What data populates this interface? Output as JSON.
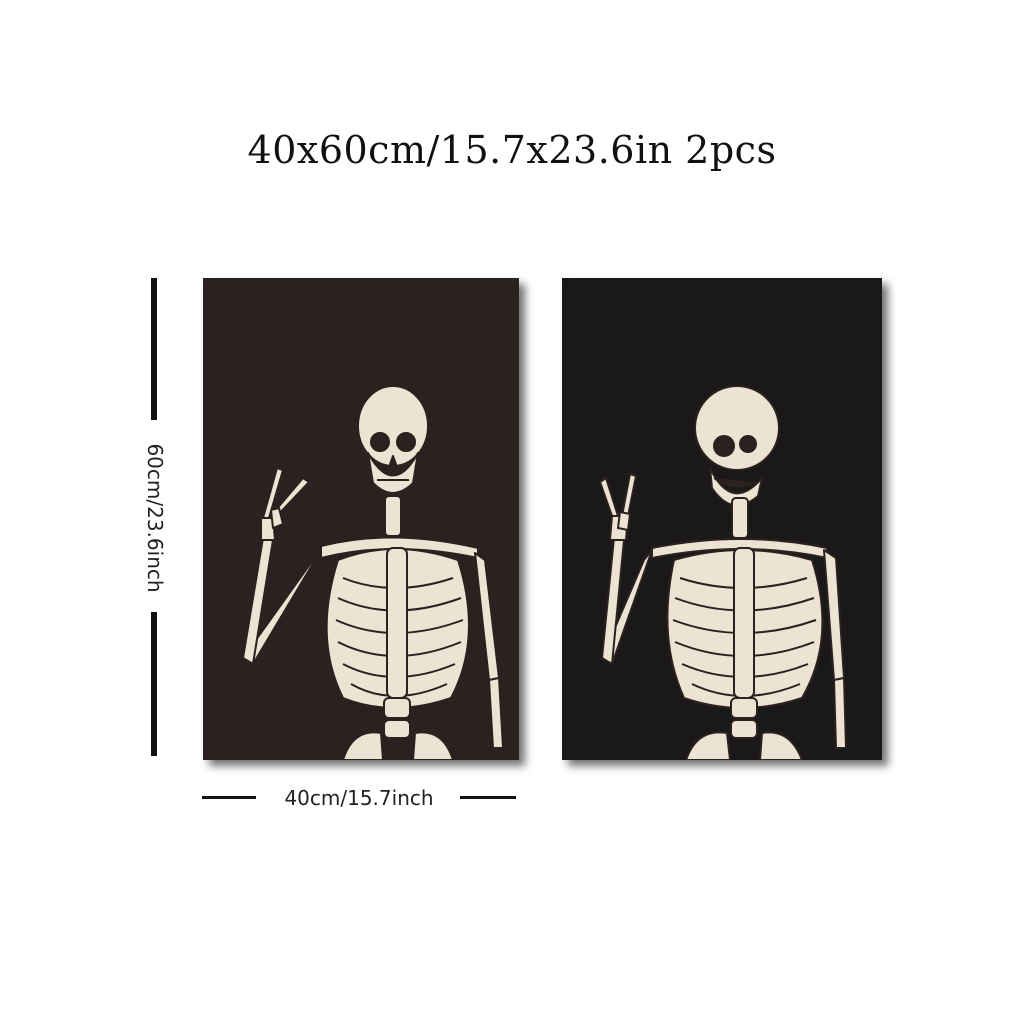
{
  "title": "40x60cm/15.7x23.6in 2pcs",
  "height_label": "60cm/23.6inch",
  "width_label": "40cm/15.7inch",
  "colors": {
    "poster_left_bg": "#2a2221",
    "poster_right_bg": "#1b1819",
    "bone": "#ece3d3",
    "bone_line": "#2b2220"
  },
  "posters": [
    {
      "subject": "skeleton making peace sign"
    },
    {
      "subject": "laughing skeleton making rock horns sign"
    }
  ]
}
